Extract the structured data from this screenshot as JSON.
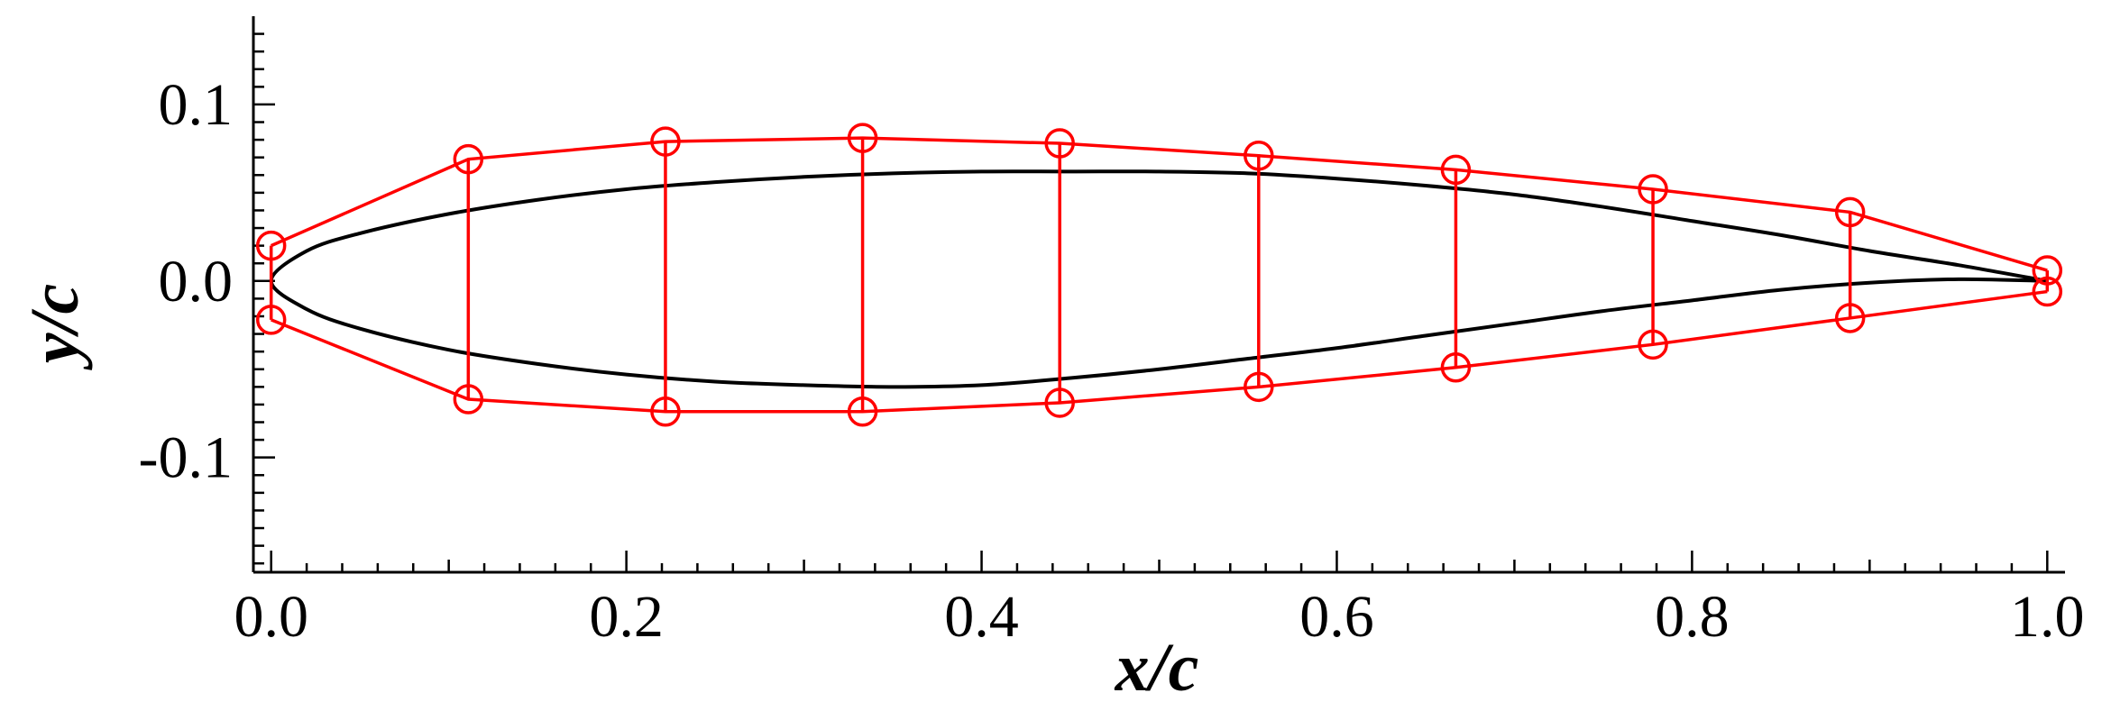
{
  "chart_data": {
    "type": "line",
    "title": "",
    "xlabel": "x/c",
    "ylabel": "y/c",
    "xlim": [
      -0.01,
      1.01
    ],
    "ylim": [
      -0.165,
      0.15
    ],
    "x_ticks": [
      0.0,
      0.2,
      0.4,
      0.6,
      0.8,
      1.0
    ],
    "x_tick_labels": [
      "0.0",
      "0.2",
      "0.4",
      "0.6",
      "0.8",
      "1.0"
    ],
    "y_ticks": [
      0.1,
      0.0,
      -0.1
    ],
    "y_tick_labels": [
      "0.1",
      "0.0",
      "-0.1"
    ],
    "grid": false,
    "legend": "none",
    "colors": {
      "airfoil": "#000000",
      "control_cage": "#ff0000"
    },
    "airfoil": {
      "upper": {
        "x": [
          0.0,
          0.02,
          0.05,
          0.1,
          0.15,
          0.2,
          0.25,
          0.3,
          0.35,
          0.4,
          0.45,
          0.5,
          0.55,
          0.6,
          0.65,
          0.7,
          0.75,
          0.8,
          0.85,
          0.9,
          0.95,
          1.0
        ],
        "y": [
          0.0,
          0.017,
          0.027,
          0.038,
          0.046,
          0.052,
          0.056,
          0.059,
          0.061,
          0.062,
          0.062,
          0.062,
          0.061,
          0.058,
          0.054,
          0.049,
          0.042,
          0.034,
          0.026,
          0.017,
          0.009,
          0.0
        ]
      },
      "lower": {
        "x": [
          0.0,
          0.02,
          0.05,
          0.1,
          0.15,
          0.2,
          0.25,
          0.3,
          0.35,
          0.4,
          0.45,
          0.5,
          0.55,
          0.6,
          0.65,
          0.7,
          0.75,
          0.8,
          0.85,
          0.9,
          0.95,
          1.0
        ],
        "y": [
          0.0,
          -0.016,
          -0.027,
          -0.039,
          -0.047,
          -0.053,
          -0.057,
          -0.059,
          -0.06,
          -0.059,
          -0.055,
          -0.05,
          -0.044,
          -0.038,
          -0.031,
          -0.024,
          -0.017,
          -0.011,
          -0.005,
          -0.001,
          0.001,
          0.0
        ]
      }
    },
    "control_points": {
      "upper": {
        "x": [
          0.0,
          0.111,
          0.222,
          0.333,
          0.444,
          0.556,
          0.667,
          0.778,
          0.889,
          1.0
        ],
        "y": [
          0.02,
          0.069,
          0.079,
          0.081,
          0.078,
          0.071,
          0.063,
          0.052,
          0.039,
          0.006
        ]
      },
      "lower": {
        "x": [
          0.0,
          0.111,
          0.222,
          0.333,
          0.444,
          0.556,
          0.667,
          0.778,
          0.889,
          1.0
        ],
        "y": [
          -0.022,
          -0.067,
          -0.074,
          -0.074,
          -0.069,
          -0.06,
          -0.049,
          -0.036,
          -0.021,
          -0.006
        ]
      }
    }
  }
}
